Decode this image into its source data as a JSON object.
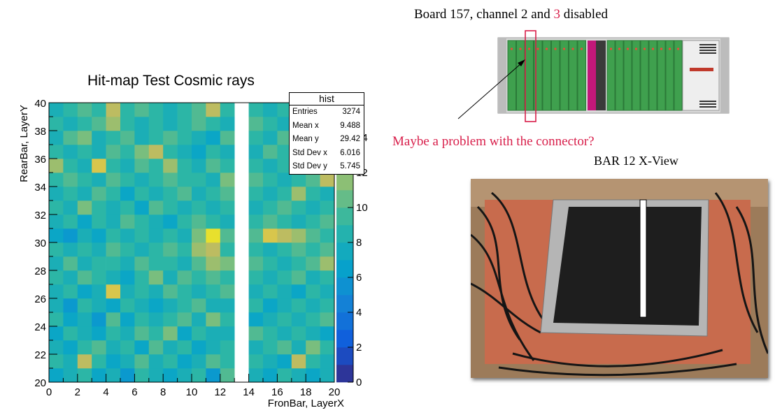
{
  "plot_title": "Hit-map Test Cosmic rays",
  "stats": {
    "name": "hist",
    "rows": [
      {
        "label": "Entries",
        "value": "3274"
      },
      {
        "label": "Mean x",
        "value": "9.488"
      },
      {
        "label": "Mean y",
        "value": "29.42"
      },
      {
        "label": "Std Dev x",
        "value": "6.016"
      },
      {
        "label": "Std Dev y",
        "value": "5.745"
      }
    ]
  },
  "board_caption": {
    "part1": "Board 157, channel 2 and ",
    "part2": "3",
    "part3": " disabled"
  },
  "connector_note": "Maybe a problem with the connector?",
  "bar_caption": "BAR 12 X-View",
  "colors": {
    "accent_red": "#d81e4a",
    "crate_green": "#3fa04e",
    "board_magenta": "#c2187a"
  },
  "chart_data": {
    "type": "heatmap",
    "title": "Hit-map Test Cosmic rays",
    "xlabel": "FronBar, LayerX",
    "ylabel": "RearBar, LayerY",
    "xlim": [
      0,
      20
    ],
    "ylim": [
      20,
      40
    ],
    "x_ticks": [
      "0",
      "2",
      "4",
      "6",
      "8",
      "10",
      "12",
      "14",
      "16",
      "18",
      "20"
    ],
    "y_ticks": [
      "20",
      "22",
      "24",
      "26",
      "28",
      "30",
      "32",
      "34",
      "36",
      "38",
      "40"
    ],
    "z_ticks": [
      "0",
      "2",
      "4",
      "6",
      "8",
      "10",
      "12",
      "14"
    ],
    "z_range": [
      0,
      16
    ],
    "palette": "kBird",
    "x_bins": [
      0,
      1,
      2,
      3,
      4,
      5,
      6,
      7,
      8,
      9,
      10,
      11,
      12,
      13,
      14,
      15,
      16,
      17,
      18,
      19
    ],
    "y_bins": [
      20,
      21,
      22,
      23,
      24,
      25,
      26,
      27,
      28,
      29,
      30,
      31,
      32,
      33,
      34,
      35,
      36,
      37,
      38,
      39
    ],
    "values": [
      [
        7,
        8,
        9,
        7,
        8,
        6,
        9,
        8,
        7,
        8,
        9,
        6,
        10,
        0,
        8,
        7,
        9,
        8,
        7,
        8
      ],
      [
        9,
        8,
        13,
        9,
        7,
        8,
        10,
        8,
        9,
        7,
        8,
        10,
        9,
        0,
        9,
        8,
        7,
        13,
        9,
        8
      ],
      [
        8,
        7,
        9,
        10,
        8,
        9,
        7,
        10,
        8,
        9,
        7,
        8,
        9,
        0,
        8,
        9,
        10,
        8,
        11,
        9
      ],
      [
        7,
        9,
        8,
        7,
        9,
        8,
        10,
        9,
        11,
        7,
        9,
        8,
        8,
        0,
        10,
        9,
        8,
        9,
        8,
        7
      ],
      [
        9,
        7,
        8,
        6,
        10,
        7,
        9,
        8,
        9,
        10,
        8,
        11,
        9,
        0,
        7,
        8,
        9,
        8,
        9,
        10
      ],
      [
        8,
        6,
        9,
        8,
        7,
        9,
        8,
        7,
        8,
        9,
        10,
        8,
        8,
        0,
        9,
        7,
        8,
        9,
        8,
        9
      ],
      [
        8,
        9,
        7,
        8,
        14,
        8,
        9,
        8,
        10,
        9,
        8,
        9,
        10,
        0,
        8,
        9,
        8,
        7,
        9,
        8
      ],
      [
        9,
        8,
        10,
        9,
        8,
        7,
        9,
        11,
        8,
        10,
        9,
        10,
        9,
        0,
        9,
        8,
        9,
        10,
        8,
        9
      ],
      [
        8,
        10,
        8,
        9,
        9,
        8,
        10,
        9,
        9,
        8,
        10,
        12,
        11,
        0,
        10,
        9,
        8,
        9,
        10,
        12
      ],
      [
        9,
        8,
        9,
        8,
        10,
        9,
        8,
        9,
        10,
        9,
        12,
        13,
        9,
        0,
        9,
        8,
        9,
        10,
        9,
        10
      ],
      [
        7,
        6,
        8,
        7,
        9,
        8,
        9,
        8,
        9,
        8,
        11,
        15,
        10,
        0,
        10,
        14,
        13,
        12,
        10,
        9
      ],
      [
        8,
        9,
        7,
        9,
        8,
        10,
        9,
        8,
        7,
        9,
        10,
        9,
        8,
        0,
        9,
        10,
        9,
        8,
        9,
        10
      ],
      [
        9,
        8,
        11,
        9,
        8,
        9,
        7,
        10,
        9,
        8,
        9,
        8,
        9,
        0,
        8,
        9,
        10,
        9,
        8,
        9
      ],
      [
        8,
        9,
        8,
        10,
        9,
        7,
        9,
        8,
        9,
        10,
        8,
        9,
        10,
        0,
        9,
        8,
        9,
        12,
        9,
        8
      ],
      [
        9,
        10,
        9,
        8,
        10,
        9,
        8,
        9,
        10,
        9,
        9,
        8,
        11,
        0,
        10,
        9,
        8,
        9,
        10,
        13
      ],
      [
        12,
        9,
        8,
        14,
        9,
        8,
        10,
        9,
        12,
        9,
        8,
        10,
        9,
        0,
        9,
        8,
        9,
        8,
        9,
        10
      ],
      [
        9,
        8,
        9,
        8,
        10,
        9,
        11,
        13,
        9,
        8,
        7,
        9,
        8,
        0,
        8,
        10,
        9,
        8,
        9,
        9
      ],
      [
        8,
        10,
        11,
        8,
        9,
        10,
        8,
        9,
        10,
        9,
        8,
        7,
        10,
        0,
        9,
        8,
        10,
        9,
        8,
        9
      ],
      [
        9,
        8,
        9,
        10,
        12,
        9,
        8,
        9,
        8,
        9,
        10,
        9,
        8,
        0,
        10,
        9,
        8,
        10,
        9,
        9
      ],
      [
        8,
        9,
        10,
        9,
        13,
        9,
        10,
        9,
        8,
        9,
        10,
        13,
        9,
        0,
        9,
        8,
        9,
        8,
        10,
        8
      ]
    ]
  }
}
